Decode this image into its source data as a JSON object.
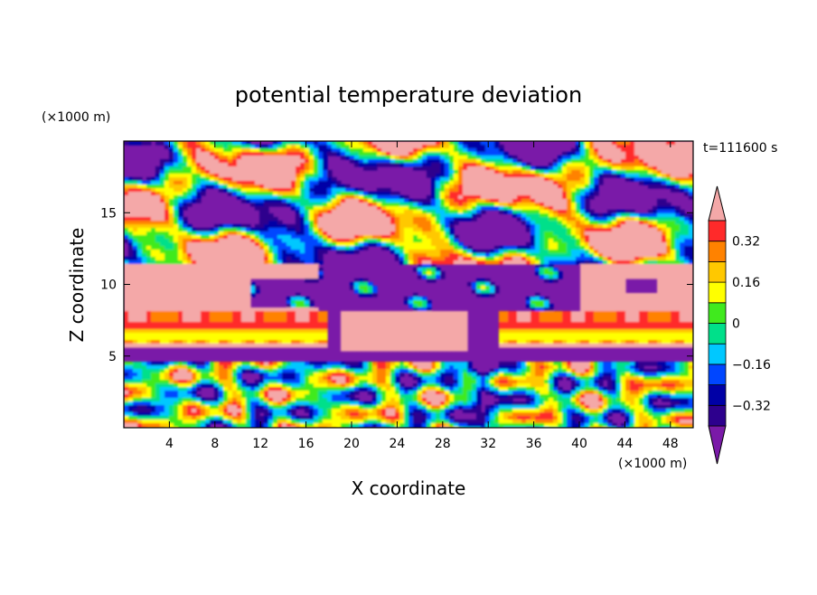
{
  "chart_data": {
    "type": "heatmap",
    "title": "potential temperature deviation",
    "xlabel": "X coordinate",
    "ylabel": "Z coordinate",
    "x_unit": "(×1000 m)",
    "y_unit": "(×1000 m)",
    "time_label": "t=111600 s",
    "xlim": [
      0,
      50
    ],
    "ylim": [
      0,
      20
    ],
    "x_ticks": [
      4,
      8,
      12,
      16,
      20,
      24,
      28,
      32,
      36,
      40,
      44,
      48
    ],
    "y_ticks": [
      5,
      10,
      15
    ],
    "colorbar": {
      "levels": [
        -0.4,
        -0.32,
        -0.24,
        -0.16,
        -0.08,
        0,
        0.08,
        0.16,
        0.24,
        0.32,
        0.4
      ],
      "tick_labels": [
        "0.32",
        "0.16",
        "0",
        "−0.16",
        "−0.32"
      ],
      "tick_values": [
        0.32,
        0.16,
        0,
        -0.16,
        -0.32
      ],
      "colors": [
        "#2d008d",
        "#0000a6",
        "#0046ff",
        "#00c8ff",
        "#00e08a",
        "#40ea1e",
        "#ffff00",
        "#ffc800",
        "#ff8200",
        "#ff2a2a"
      ],
      "over_color": "#f4a8a8",
      "under_color": "#7a1aa8",
      "extend": "both"
    },
    "colors": {
      "pink": "#f4a8a8",
      "purple": "#7a1aa8"
    }
  }
}
